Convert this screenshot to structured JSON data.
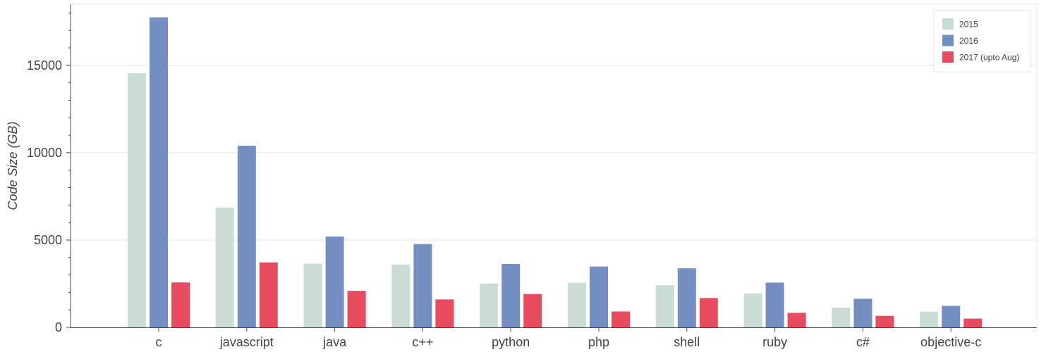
{
  "chart_data": {
    "type": "bar",
    "xlabel": "",
    "ylabel": "Code Size (GB)",
    "ylim": [
      0,
      18500
    ],
    "yticks": [
      0,
      5000,
      10000,
      15000
    ],
    "ytick_labels": [
      "0",
      "5000",
      "10000",
      "15000"
    ],
    "grid": true,
    "legend_position": "top-right",
    "categories": [
      "c",
      "javascript",
      "java",
      "c++",
      "python",
      "php",
      "shell",
      "ruby",
      "c#",
      "objective-c"
    ],
    "series": [
      {
        "name": "2015",
        "color": "#c9dcd5",
        "values": [
          14550,
          6850,
          3650,
          3600,
          2500,
          2550,
          2420,
          1950,
          1130,
          900
        ]
      },
      {
        "name": "2016",
        "color": "#738fc1",
        "values": [
          17750,
          10400,
          5200,
          4770,
          3630,
          3480,
          3380,
          2560,
          1640,
          1230
        ]
      },
      {
        "name": "2017 (upto Aug)",
        "color": "#e84c5f",
        "values": [
          2570,
          3720,
          2090,
          1600,
          1910,
          910,
          1680,
          830,
          660,
          500
        ]
      }
    ]
  }
}
